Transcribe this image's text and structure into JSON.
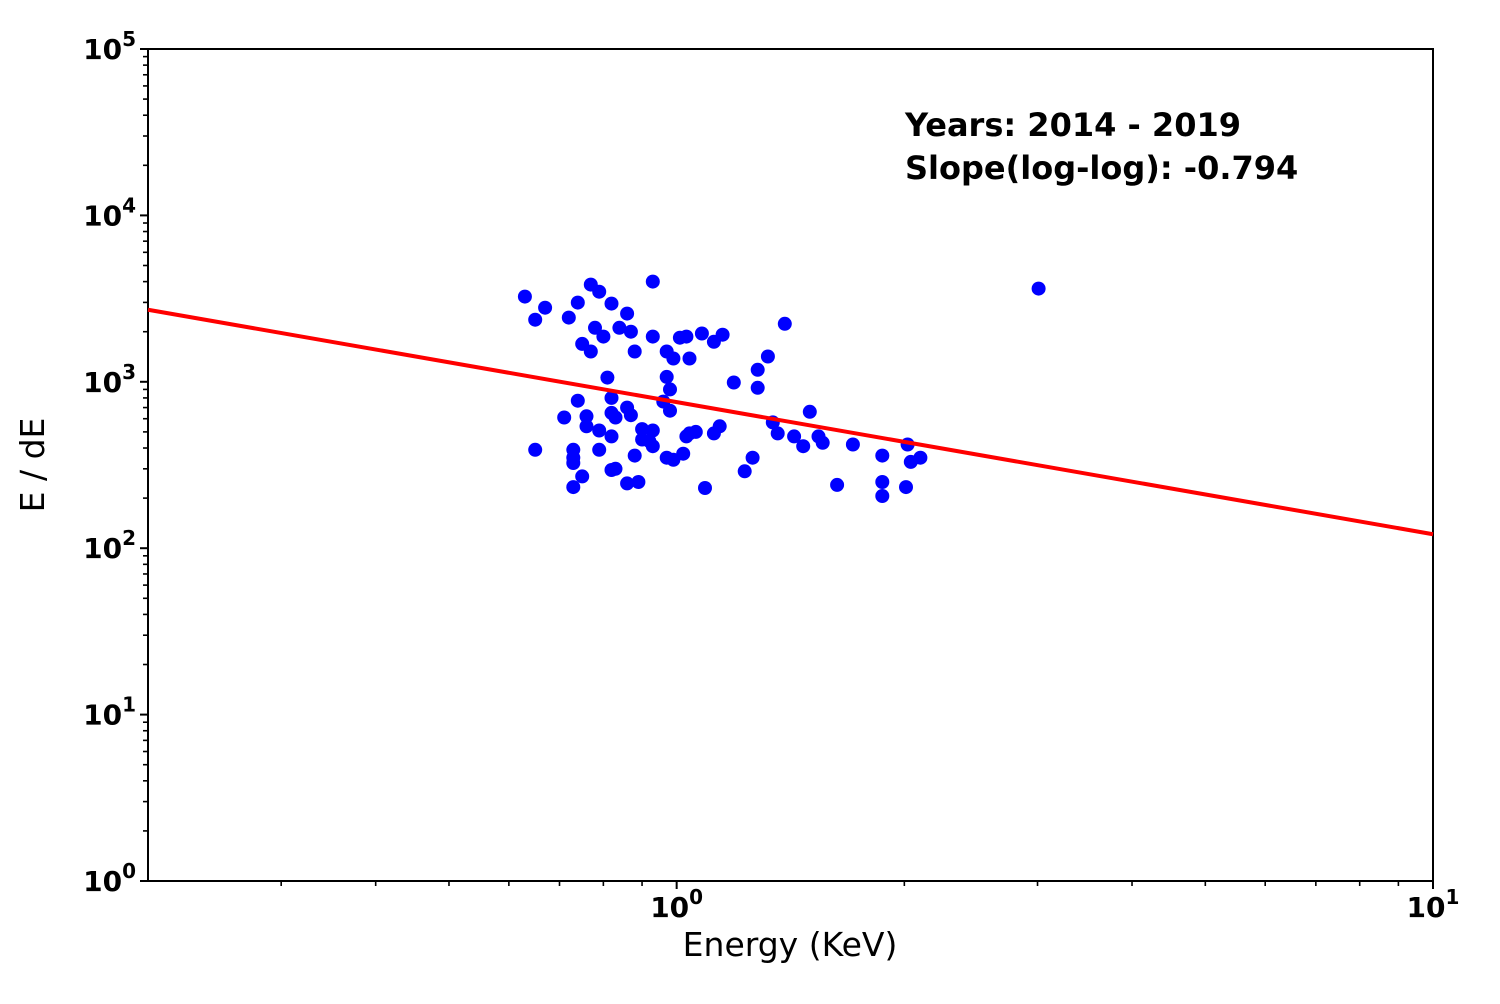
{
  "chart_data": {
    "type": "scatter",
    "xlabel": "Energy (KeV)",
    "ylabel": "E / dE",
    "xscale": "log",
    "yscale": "log",
    "xlim": [
      0.2,
      10
    ],
    "ylim": [
      1,
      100000
    ],
    "x_tick_exponents": [
      0,
      1
    ],
    "y_tick_exponents": [
      0,
      1,
      2,
      3,
      4,
      5
    ],
    "grid": false,
    "legend": "none",
    "annotation": {
      "line1": "Years: 2014 - 2019",
      "line2": "Slope(log-log): -0.794"
    },
    "marker_color": "#0000ff",
    "fit_line_color": "#ff0000",
    "axis_color": "#000000",
    "background_color": "#ffffff",
    "fit_line": {
      "slope": -0.794,
      "y_at_1kev": 755,
      "x_start": 0.2,
      "x_end": 10
    },
    "points": [
      [
        0.63,
        3250
      ],
      [
        0.67,
        2790
      ],
      [
        0.65,
        2360
      ],
      [
        0.74,
        2990
      ],
      [
        0.72,
        2430
      ],
      [
        0.77,
        3840
      ],
      [
        0.79,
        3480
      ],
      [
        0.78,
        2110
      ],
      [
        0.8,
        1870
      ],
      [
        0.82,
        2950
      ],
      [
        0.93,
        4000
      ],
      [
        0.84,
        2110
      ],
      [
        0.86,
        2570
      ],
      [
        0.87,
        2000
      ],
      [
        0.75,
        1690
      ],
      [
        0.77,
        1520
      ],
      [
        0.93,
        1870
      ],
      [
        0.88,
        1520
      ],
      [
        0.97,
        1520
      ],
      [
        0.99,
        1380
      ],
      [
        1.04,
        1380
      ],
      [
        1.01,
        1840
      ],
      [
        1.03,
        1870
      ],
      [
        1.08,
        1950
      ],
      [
        1.12,
        1740
      ],
      [
        1.15,
        1920
      ],
      [
        1.19,
        990
      ],
      [
        0.81,
        1060
      ],
      [
        0.82,
        800
      ],
      [
        0.97,
        1070
      ],
      [
        0.98,
        900
      ],
      [
        0.96,
        760
      ],
      [
        0.98,
        670
      ],
      [
        0.74,
        770
      ],
      [
        0.71,
        610
      ],
      [
        0.76,
        620
      ],
      [
        0.76,
        540
      ],
      [
        0.82,
        650
      ],
      [
        0.83,
        610
      ],
      [
        0.86,
        700
      ],
      [
        0.87,
        630
      ],
      [
        0.79,
        510
      ],
      [
        0.82,
        470
      ],
      [
        0.9,
        520
      ],
      [
        0.93,
        510
      ],
      [
        0.9,
        450
      ],
      [
        0.92,
        440
      ],
      [
        0.93,
        410
      ],
      [
        1.04,
        490
      ],
      [
        1.06,
        500
      ],
      [
        1.03,
        470
      ],
      [
        1.12,
        490
      ],
      [
        1.14,
        540
      ],
      [
        0.65,
        390
      ],
      [
        0.73,
        390
      ],
      [
        0.73,
        350
      ],
      [
        0.73,
        325
      ],
      [
        0.79,
        390
      ],
      [
        0.88,
        360
      ],
      [
        0.97,
        350
      ],
      [
        0.99,
        340
      ],
      [
        1.02,
        370
      ],
      [
        0.82,
        295
      ],
      [
        0.83,
        300
      ],
      [
        0.75,
        270
      ],
      [
        0.86,
        245
      ],
      [
        0.89,
        250
      ],
      [
        0.73,
        233
      ],
      [
        1.09,
        230
      ],
      [
        1.39,
        2230
      ],
      [
        1.32,
        1420
      ],
      [
        1.28,
        1180
      ],
      [
        1.28,
        920
      ],
      [
        1.5,
        660
      ],
      [
        1.34,
        570
      ],
      [
        1.36,
        490
      ],
      [
        1.43,
        470
      ],
      [
        1.47,
        410
      ],
      [
        1.54,
        470
      ],
      [
        1.56,
        430
      ],
      [
        1.71,
        420
      ],
      [
        1.26,
        350
      ],
      [
        1.23,
        290
      ],
      [
        1.87,
        360
      ],
      [
        2.02,
        420
      ],
      [
        2.04,
        330
      ],
      [
        2.1,
        350
      ],
      [
        1.63,
        240
      ],
      [
        1.87,
        250
      ],
      [
        2.01,
        233
      ],
      [
        1.87,
        206
      ],
      [
        3.01,
        3630
      ]
    ]
  }
}
